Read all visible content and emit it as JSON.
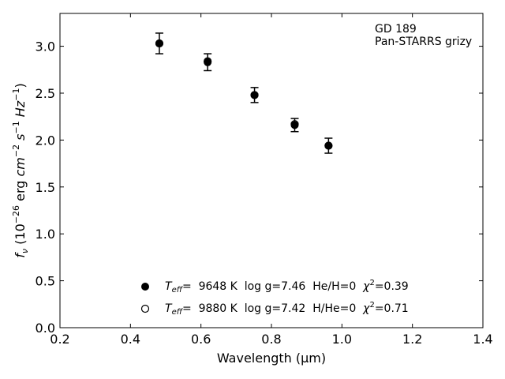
{
  "chart_data": {
    "type": "scatter",
    "xlabel": "Wavelength (μm)",
    "ylabel_parts": {
      "f": "f",
      "nu": "ν",
      "open": "(10",
      "exp1": "−26",
      "erg": " erg ",
      "cm": "cm",
      "exp2": "−2",
      "s": " s",
      "exp3": "−1",
      "hz": " Hz",
      "exp4": "−1",
      "close": ")"
    },
    "xlim": [
      0.2,
      1.4
    ],
    "ylim": [
      0.0,
      3.35
    ],
    "xticks": [
      0.2,
      0.4,
      0.6,
      0.8,
      1.0,
      1.2,
      1.4
    ],
    "xtick_labels": [
      "0.2",
      "0.4",
      "0.6",
      "0.8",
      "1.0",
      "1.2",
      "1.4"
    ],
    "yticks": [
      0.0,
      0.5,
      1.0,
      1.5,
      2.0,
      2.5,
      3.0
    ],
    "ytick_labels": [
      "0.0",
      "0.5",
      "1.0",
      "1.5",
      "2.0",
      "2.5",
      "3.0"
    ],
    "annotation": [
      "GD 189",
      "Pan-STARRS grizy"
    ],
    "series": [
      {
        "marker": "filled",
        "label": {
          "t": "T",
          "eff": "eff",
          "text": "=  9648 K  log g=7.46  He/H=0  ",
          "chi": "χ",
          "sq": "2",
          "chival": "=0.39"
        },
        "points": [
          {
            "x": 0.482,
            "y": 3.03,
            "err": 0.11
          },
          {
            "x": 0.619,
            "y": 2.83,
            "err": 0.09
          },
          {
            "x": 0.752,
            "y": 2.48,
            "err": 0.08
          },
          {
            "x": 0.866,
            "y": 2.16,
            "err": 0.07
          },
          {
            "x": 0.962,
            "y": 1.94,
            "err": 0.08
          }
        ]
      },
      {
        "marker": "open",
        "label": {
          "t": "T",
          "eff": "eff",
          "text": "=  9880 K  log g=7.42  H/He=0  ",
          "chi": "χ",
          "sq": "2",
          "chival": "=0.71"
        },
        "points": [
          {
            "x": 0.482,
            "y": 3.03
          },
          {
            "x": 0.619,
            "y": 2.84
          },
          {
            "x": 0.752,
            "y": 2.48
          },
          {
            "x": 0.866,
            "y": 2.17
          },
          {
            "x": 0.962,
            "y": 1.94
          }
        ]
      }
    ]
  }
}
